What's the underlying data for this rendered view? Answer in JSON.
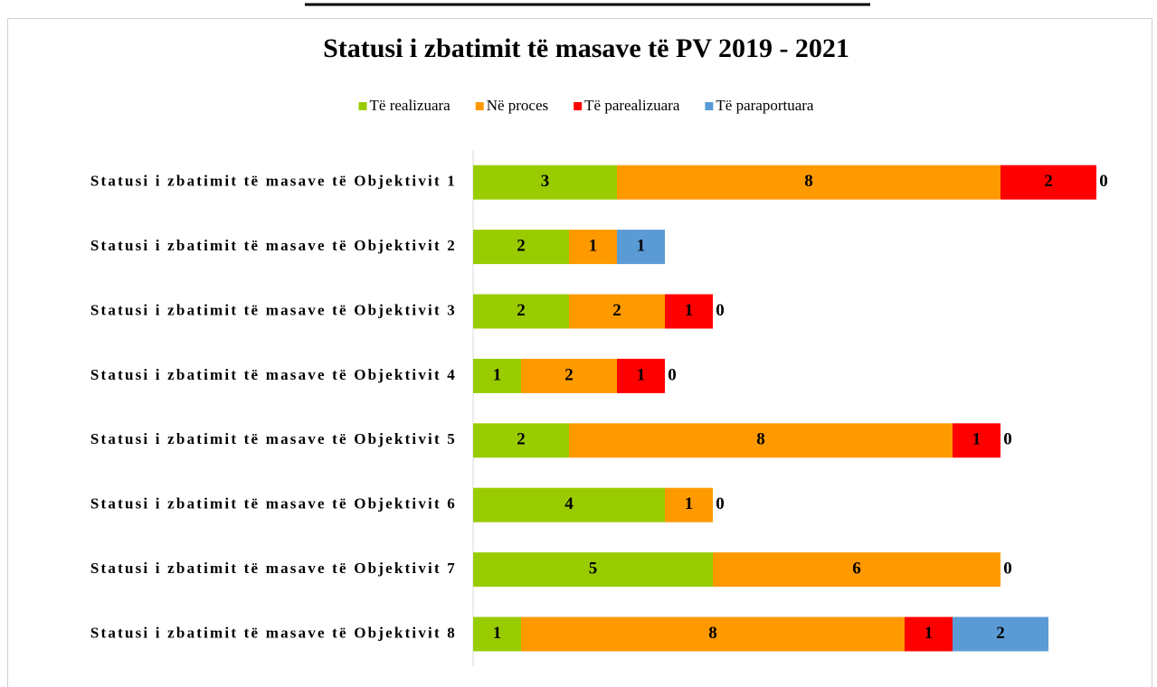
{
  "chart_data": {
    "type": "stacked_barh",
    "title": "Statusi i zbatimit të masave të PV 2019 - 2021",
    "categories": [
      "Statusi i zbatimit të masave të Objektivit 1",
      "Statusi i zbatimit të masave të Objektivit 2",
      "Statusi i zbatimit të masave të Objektivit 3",
      "Statusi i zbatimit të masave të Objektivit 4",
      "Statusi i zbatimit të masave të Objektivit 5",
      "Statusi i zbatimit të masave të Objektivit 6",
      "Statusi i zbatimit të masave të Objektivit 7",
      "Statusi i zbatimit të masave të Objektivit 8"
    ],
    "series": [
      {
        "name": "Të realizuara",
        "color": "#99cc00",
        "values": [
          3,
          2,
          2,
          1,
          2,
          4,
          5,
          1
        ]
      },
      {
        "name": "Në proces",
        "color": "#ff9900",
        "values": [
          8,
          1,
          2,
          2,
          8,
          1,
          6,
          8
        ]
      },
      {
        "name": "Të parealizuara",
        "color": "#ff0000",
        "values": [
          2,
          0,
          1,
          1,
          1,
          null,
          null,
          1
        ]
      },
      {
        "name": "Të paraportuara",
        "color": "#5b9bd5",
        "values": [
          0,
          1,
          0,
          0,
          0,
          0,
          0,
          2
        ]
      }
    ],
    "xlim": [
      0,
      14
    ],
    "legend": "top"
  }
}
